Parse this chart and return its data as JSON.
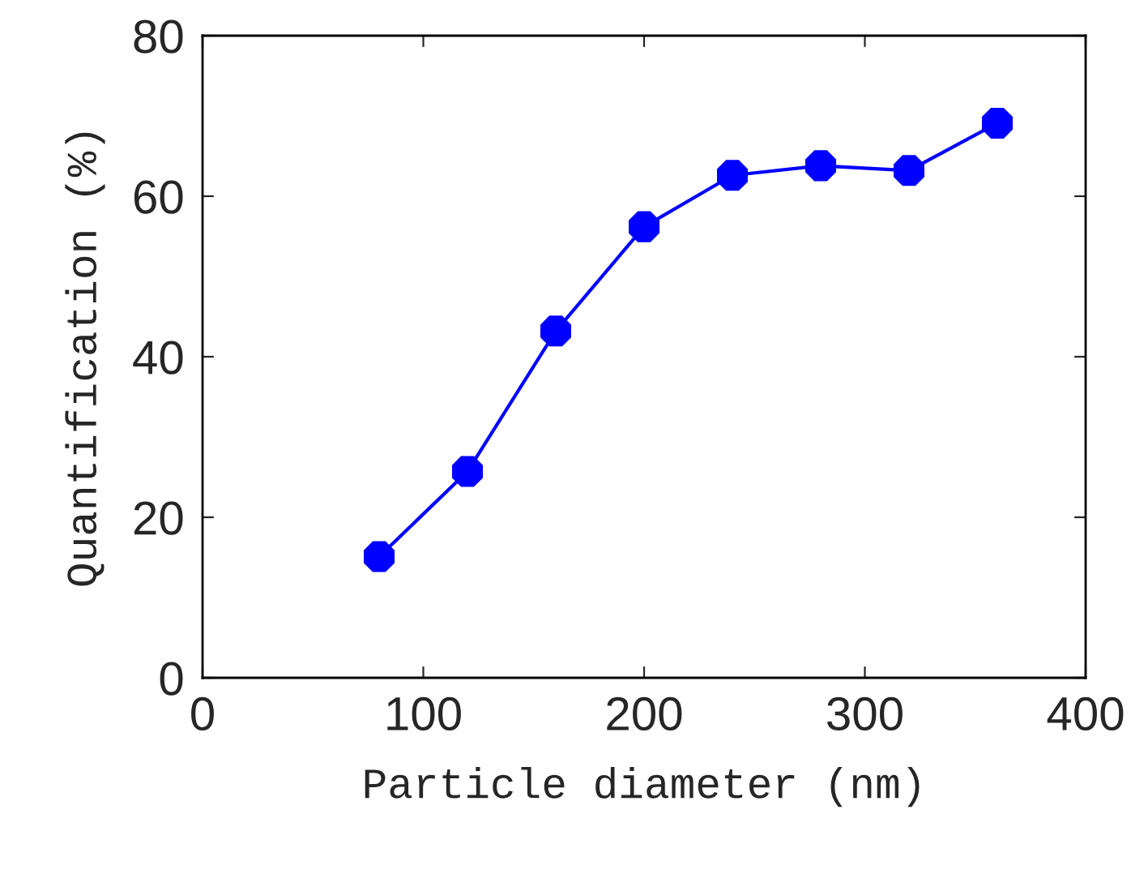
{
  "chart_data": {
    "type": "line",
    "xlabel": "Particle diameter (nm)",
    "ylabel": "Quantification (%)",
    "x": [
      80,
      120,
      160,
      200,
      240,
      280,
      320,
      360
    ],
    "series": [
      {
        "color": "#0000ff",
        "values": [
          15.1,
          25.7,
          43.2,
          56.2,
          62.6,
          63.8,
          63.2,
          69.1
        ]
      }
    ],
    "xlim": [
      0,
      400
    ],
    "xticks": [
      0,
      100,
      200,
      300,
      400
    ],
    "ylim": [
      0,
      80
    ],
    "yticks": [
      0,
      20,
      40,
      60,
      80
    ],
    "marker": "circle",
    "line_style": "solid"
  }
}
